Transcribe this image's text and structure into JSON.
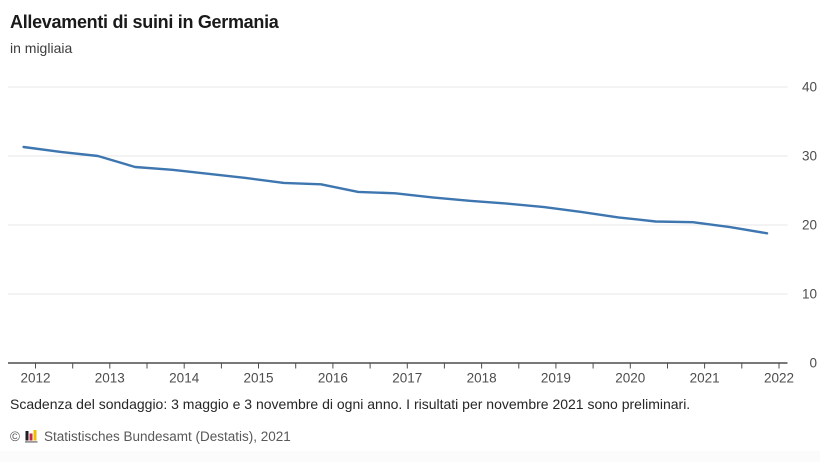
{
  "header": {
    "title": "Allevamenti di suini in Germania",
    "subtitle": "in migliaia"
  },
  "footer": {
    "note": "Scadenza del sondaggio: 3 maggio e 3 novembre di ogni anno. I risultati per novembre 2021 sono preliminari.",
    "copyright_symbol": "©",
    "copyright": "Statistisches Bundesamt (Destatis), 2021",
    "logo_colors": {
      "bar1": "#1f1f1f",
      "bar2": "#c0274d",
      "bar3": "#f0bf00",
      "base": "#9a9a9a"
    }
  },
  "chart_data": {
    "type": "line",
    "title": "Allevamenti di suini in Germania",
    "ylabel": "in migliaia",
    "xlabel": "",
    "xlim": [
      2012,
      2022
    ],
    "ylim": [
      0,
      40
    ],
    "x_ticks": [
      2012,
      2013,
      2014,
      2015,
      2016,
      2017,
      2018,
      2019,
      2020,
      2021,
      2022
    ],
    "y_ticks": [
      0,
      10,
      20,
      30,
      40
    ],
    "grid": "horizontal",
    "legend": "none",
    "colors": {
      "line": "#3e76b0",
      "axis": "#4d4d4d",
      "grid": "#e7e7e7",
      "tick_label": "#4d4d4d"
    },
    "series": [
      {
        "name": "Allevamenti di suini (migliaia)",
        "points": [
          {
            "label": "novembre 2011",
            "x": 2011.84,
            "value": 31.3
          },
          {
            "label": "maggio 2012",
            "x": 2012.34,
            "value": 30.6
          },
          {
            "label": "novembre 2012",
            "x": 2012.84,
            "value": 30.0
          },
          {
            "label": "maggio 2013",
            "x": 2013.34,
            "value": 28.4
          },
          {
            "label": "novembre 2013",
            "x": 2013.84,
            "value": 28.0
          },
          {
            "label": "maggio 2014",
            "x": 2014.34,
            "value": 27.4
          },
          {
            "label": "novembre 2014",
            "x": 2014.84,
            "value": 26.8
          },
          {
            "label": "maggio 2015",
            "x": 2015.34,
            "value": 26.1
          },
          {
            "label": "novembre 2015",
            "x": 2015.84,
            "value": 25.9
          },
          {
            "label": "maggio 2016",
            "x": 2016.34,
            "value": 24.8
          },
          {
            "label": "novembre 2016",
            "x": 2016.84,
            "value": 24.6
          },
          {
            "label": "maggio 2017",
            "x": 2017.34,
            "value": 24.0
          },
          {
            "label": "novembre 2017",
            "x": 2017.84,
            "value": 23.5
          },
          {
            "label": "maggio 2018",
            "x": 2018.34,
            "value": 23.1
          },
          {
            "label": "novembre 2018",
            "x": 2018.84,
            "value": 22.6
          },
          {
            "label": "maggio 2019",
            "x": 2019.34,
            "value": 21.9
          },
          {
            "label": "novembre 2019",
            "x": 2019.84,
            "value": 21.1
          },
          {
            "label": "maggio 2020",
            "x": 2020.34,
            "value": 20.5
          },
          {
            "label": "novembre 2020",
            "x": 2020.84,
            "value": 20.4
          },
          {
            "label": "maggio 2021",
            "x": 2021.34,
            "value": 19.7
          },
          {
            "label": "novembre 2021",
            "x": 2021.84,
            "value": 18.8
          }
        ]
      }
    ]
  }
}
